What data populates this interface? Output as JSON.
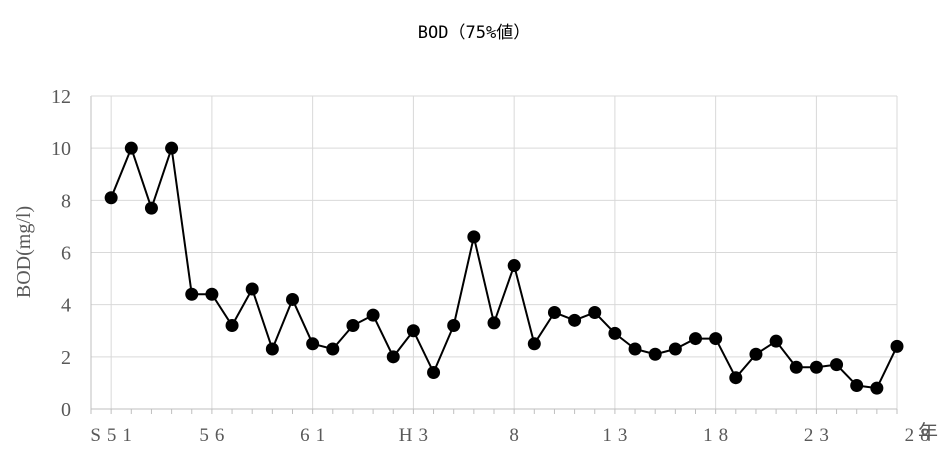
{
  "chart_data": {
    "type": "line",
    "title": "BOD（75%値）",
    "ylabel": "BOD(mg/l)",
    "xlabel": "",
    "x_unit_label": "年",
    "ylim": [
      0,
      12
    ],
    "yticks": [
      0,
      2,
      4,
      6,
      8,
      10,
      12
    ],
    "grid": true,
    "legend": "none",
    "xtick_labels": [
      {
        "index": 0,
        "label": "S51"
      },
      {
        "index": 5,
        "label": "56"
      },
      {
        "index": 10,
        "label": "61"
      },
      {
        "index": 15,
        "label": "H3"
      },
      {
        "index": 20,
        "label": "8"
      },
      {
        "index": 25,
        "label": "13"
      },
      {
        "index": 30,
        "label": "18"
      },
      {
        "index": 35,
        "label": "23"
      },
      {
        "index": 40,
        "label": "28"
      }
    ],
    "series": [
      {
        "values": [
          8.1,
          10.0,
          7.7,
          10.0,
          4.4,
          4.4,
          3.2,
          4.6,
          2.3,
          4.2,
          2.5,
          2.3,
          3.2,
          3.6,
          2.0,
          3.0,
          1.4,
          3.2,
          6.6,
          3.3,
          5.5,
          2.5,
          3.7,
          3.4,
          3.7,
          2.9,
          2.3,
          2.1,
          2.3,
          2.7,
          2.7,
          1.2,
          2.1,
          2.6,
          1.6,
          1.6,
          1.7,
          0.9,
          0.8,
          2.4
        ],
        "color": "#000000"
      }
    ]
  }
}
